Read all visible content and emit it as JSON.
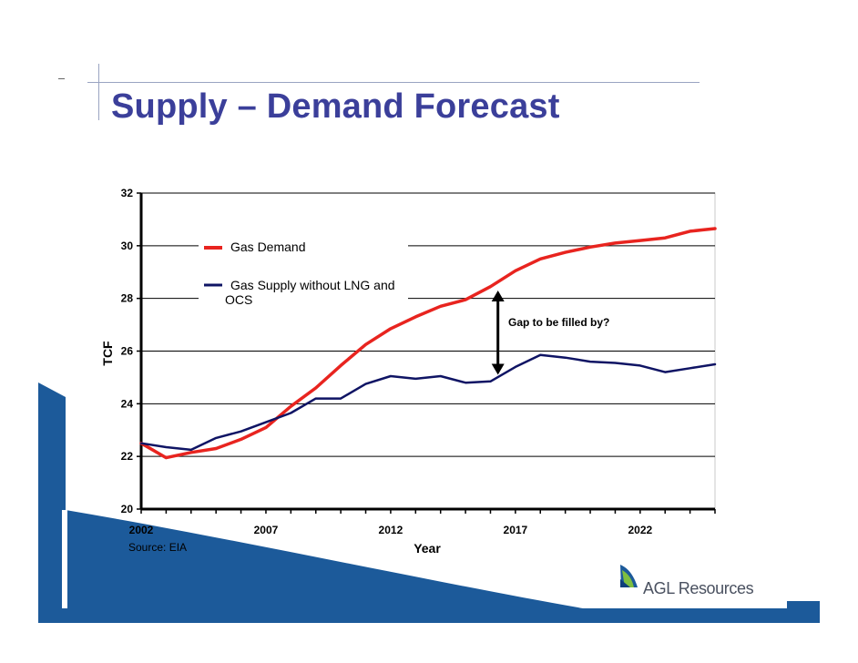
{
  "slide": {
    "title": "Supply – Demand Forecast",
    "source": "Source: EIA",
    "logo_text": "AGL Resources"
  },
  "colors": {
    "title": "#3b3f9a",
    "demand": "#e8241f",
    "supply": "#0f1464",
    "swoosh": "#1c5a9a"
  },
  "chart_data": {
    "type": "line",
    "title": "",
    "xlabel": "Year",
    "ylabel": "TCF",
    "xlim": [
      2002,
      2025
    ],
    "ylim": [
      20,
      32
    ],
    "x_ticks": [
      2002,
      2007,
      2012,
      2017,
      2022
    ],
    "y_ticks": [
      20,
      22,
      24,
      26,
      28,
      30,
      32
    ],
    "grid": "horizontal",
    "legend_position": "upper-left",
    "x": [
      2002,
      2003,
      2004,
      2005,
      2006,
      2007,
      2008,
      2009,
      2010,
      2011,
      2012,
      2013,
      2014,
      2015,
      2016,
      2017,
      2018,
      2019,
      2020,
      2021,
      2022,
      2023,
      2024,
      2025
    ],
    "series": [
      {
        "name": "Gas Demand",
        "color": "#e8241f",
        "values": [
          22.5,
          21.95,
          22.15,
          22.3,
          22.65,
          23.1,
          23.9,
          24.6,
          25.45,
          26.25,
          26.85,
          27.3,
          27.7,
          27.95,
          28.45,
          29.05,
          29.5,
          29.75,
          29.95,
          30.1,
          30.2,
          30.3,
          30.55,
          30.65
        ]
      },
      {
        "name": "Gas Supply without LNG and OCS",
        "color": "#0f1464",
        "values": [
          22.5,
          22.35,
          22.25,
          22.7,
          22.95,
          23.3,
          23.65,
          24.2,
          24.2,
          24.75,
          25.05,
          24.95,
          25.05,
          24.8,
          24.85,
          25.4,
          25.85,
          25.75,
          25.6,
          25.55,
          25.45,
          25.2,
          25.35,
          25.5
        ]
      }
    ],
    "legend": [
      "Gas Demand",
      "Gas Supply without LNG and OCS"
    ],
    "annotation": {
      "text": "Gap to be filled by?",
      "x": 2016.3,
      "y_top": 28.3,
      "y_bottom": 25.1
    }
  }
}
